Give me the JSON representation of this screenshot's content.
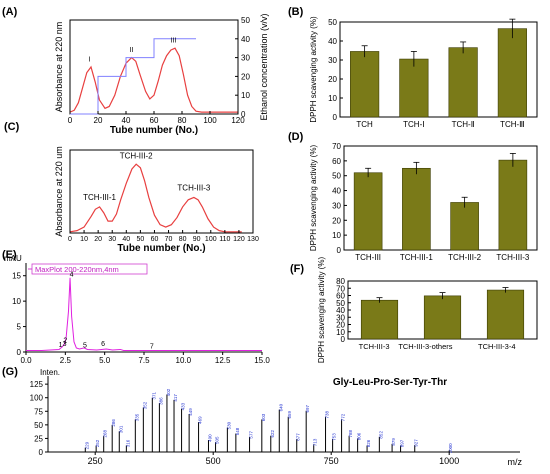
{
  "chart_data": [
    {
      "panel": "(A)",
      "type": "line",
      "xlabel": "Tube number (No.)",
      "ylabel": "Absorbance at 220 nm",
      "y2label": "Ethanol concentration (v/v)",
      "xlim": [
        0,
        120
      ],
      "ylim": [
        0,
        1.0
      ],
      "y2lim": [
        0,
        50
      ],
      "xticks": [
        "0",
        "20",
        "40",
        "60",
        "80",
        "100",
        "120"
      ],
      "y2ticks": [
        "0",
        "10",
        "20",
        "30",
        "40",
        "50"
      ],
      "series": [
        {
          "x": [
            0,
            3,
            6,
            9,
            12,
            15,
            18,
            21,
            25,
            28,
            32,
            36,
            40,
            44,
            47,
            50,
            54,
            57,
            60,
            63,
            66,
            69,
            72,
            75,
            78,
            81,
            84,
            87,
            90,
            94,
            98,
            102,
            110,
            120
          ],
          "y": [
            0.02,
            0.04,
            0.12,
            0.28,
            0.44,
            0.5,
            0.34,
            0.15,
            0.06,
            0.08,
            0.2,
            0.4,
            0.54,
            0.6,
            0.56,
            0.42,
            0.24,
            0.16,
            0.2,
            0.35,
            0.52,
            0.62,
            0.68,
            0.7,
            0.62,
            0.42,
            0.2,
            0.08,
            0.03,
            0.02,
            0.02,
            0.02,
            0.02,
            0.02
          ]
        },
        {
          "name": "ethanol",
          "x": [
            0,
            20,
            20,
            40,
            40,
            60,
            60,
            90
          ],
          "y": [
            0,
            0,
            20,
            20,
            30,
            30,
            40,
            40
          ]
        }
      ],
      "peak_labels": [
        {
          "text": "I",
          "x": 14,
          "y": 0.56
        },
        {
          "text": "II",
          "x": 44,
          "y": 0.66
        },
        {
          "text": "III",
          "x": 74,
          "y": 0.76
        }
      ]
    },
    {
      "panel": "(B)",
      "type": "bar",
      "ylabel": "DPPH scavenging activity (%)",
      "categories": [
        "TCH",
        "TCH-Ⅰ",
        "TCH-Ⅱ",
        "TCH-Ⅲ"
      ],
      "values": [
        34.5,
        30.5,
        36.5,
        46.5
      ],
      "errors": [
        3,
        4,
        3,
        5
      ],
      "ylim": [
        0,
        50
      ],
      "yticks": [
        "0",
        "10",
        "20",
        "30",
        "40",
        "50"
      ]
    },
    {
      "panel": "(C)",
      "type": "line",
      "xlabel": "Tube number (No.)",
      "ylabel": "Absorbance at 220 um",
      "xlim": [
        0,
        130
      ],
      "ylim": [
        0,
        0.7
      ],
      "xticks": [
        "0",
        "10",
        "20",
        "30",
        "40",
        "50",
        "60",
        "70",
        "80",
        "90",
        "100",
        "110",
        "120",
        "130"
      ],
      "series": [
        {
          "x": [
            0,
            5,
            10,
            15,
            18,
            21,
            24,
            27,
            30,
            33,
            36,
            40,
            44,
            47,
            50,
            53,
            56,
            60,
            64,
            68,
            72,
            76,
            80,
            84,
            88,
            91,
            94,
            98,
            102,
            106,
            110,
            114,
            118,
            122
          ],
          "y": [
            0.01,
            0.02,
            0.05,
            0.14,
            0.2,
            0.22,
            0.17,
            0.1,
            0.1,
            0.16,
            0.28,
            0.42,
            0.54,
            0.58,
            0.55,
            0.44,
            0.3,
            0.15,
            0.07,
            0.05,
            0.07,
            0.13,
            0.22,
            0.28,
            0.3,
            0.28,
            0.22,
            0.12,
            0.05,
            0.02,
            0.01,
            0.01,
            0.01,
            0.01
          ]
        }
      ],
      "peak_labels": [
        {
          "text": "TCH-III-1",
          "x": 21,
          "y": 0.28
        },
        {
          "text": "TCH-III-2",
          "x": 47,
          "y": 0.63
        },
        {
          "text": "TCH-III-3",
          "x": 88,
          "y": 0.36
        }
      ]
    },
    {
      "panel": "(D)",
      "type": "bar",
      "ylabel": "DPPH scavenging activity (%)",
      "categories": [
        "TCH-III",
        "TCH-III-1",
        "TCH-III-2",
        "TCH-III-3"
      ],
      "values": [
        52,
        55,
        32,
        60.5
      ],
      "errors": [
        3,
        4,
        3.5,
        4.5
      ],
      "ylim": [
        0,
        70
      ],
      "yticks": [
        "0",
        "10",
        "20",
        "30",
        "40",
        "50",
        "60",
        "70"
      ]
    },
    {
      "panel": "(E)",
      "type": "line",
      "unit_label": "mAU",
      "legend": "MaxPlot 200-220nm,4nm",
      "xlim": [
        0,
        15
      ],
      "ylim": [
        0,
        17.5
      ],
      "xticks": [
        "0.0",
        "2.5",
        "5.0",
        "7.5",
        "10.0",
        "12.5",
        "15.0"
      ],
      "yticks": [
        "0",
        "5",
        "10",
        "15"
      ],
      "series": [
        {
          "x": [
            0,
            1,
            2.1,
            2.3,
            2.45,
            2.55,
            2.7,
            2.8,
            2.9,
            3.05,
            3.2,
            3.4,
            3.7,
            3.9,
            4.5,
            5.1,
            5.5,
            6,
            6.2,
            6.4,
            8,
            15
          ],
          "y": [
            0.3,
            0.3,
            0.5,
            1.0,
            1.6,
            2.8,
            8,
            14.6,
            7,
            2,
            0.8,
            0.6,
            0.8,
            0.5,
            0.4,
            0.6,
            0.4,
            0.5,
            0.3,
            0.3,
            0.3,
            0.3
          ]
        }
      ],
      "peak_labels": [
        {
          "text": "1",
          "x": 2.2,
          "y": 1.0
        },
        {
          "text": "2",
          "x": 2.5,
          "y": 1.9
        },
        {
          "text": "3",
          "x": 2.45,
          "y": 1.2
        },
        {
          "text": "4",
          "x": 2.9,
          "y": 14.8
        },
        {
          "text": "5",
          "x": 3.75,
          "y": 0.9
        },
        {
          "text": "6",
          "x": 4.9,
          "y": 1.2
        },
        {
          "text": "7",
          "x": 8,
          "y": 0.7
        }
      ]
    },
    {
      "panel": "(F)",
      "type": "bar",
      "ylabel": "DPPH scavenging activity (%)",
      "categories": [
        "TCH-III-3",
        "TCH-III-3-others",
        "TCH-III-3-4"
      ],
      "values": [
        53.5,
        59.5,
        67.5
      ],
      "errors": [
        3.5,
        4.5,
        3.5
      ],
      "ylim": [
        0,
        80
      ],
      "yticks": [
        "0",
        "10",
        "20",
        "30",
        "40",
        "50",
        "60",
        "70",
        "80"
      ]
    },
    {
      "panel": "(G)",
      "type": "bar",
      "title": "Gly-Leu-Pro-Ser-Tyr-Thr",
      "ylabel": "Inten.",
      "xlabel": "m/z",
      "xlim": [
        150,
        1150
      ],
      "ylim": [
        0,
        140
      ],
      "xticks": [
        "250",
        "500",
        "750",
        "1000"
      ],
      "yticks": [
        "0",
        "25",
        "50",
        "75",
        "100",
        "125"
      ],
      "x": [
        229,
        252,
        268,
        286,
        301,
        316,
        335,
        352,
        371,
        386,
        402,
        417,
        433,
        449,
        469,
        490,
        505,
        530,
        548,
        577,
        603,
        622,
        640,
        659,
        677,
        697,
        713,
        738,
        753,
        772,
        788,
        806,
        826,
        852,
        879,
        897,
        927,
        1000
      ],
      "values": [
        8,
        12,
        30,
        50,
        38,
        12,
        60,
        82,
        100,
        90,
        106,
        96,
        80,
        70,
        55,
        22,
        18,
        45,
        34,
        28,
        60,
        30,
        78,
        65,
        24,
        76,
        14,
        65,
        24,
        60,
        30,
        25,
        12,
        28,
        15,
        12,
        13,
        3
      ]
    }
  ]
}
